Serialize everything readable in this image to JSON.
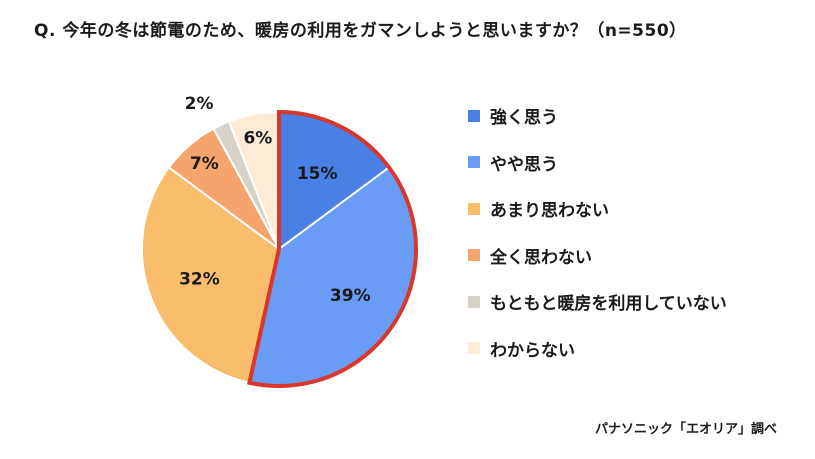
{
  "title": "Q. 今年の冬は節電のため、暖房の利用をガマンしようと思いますか？（n=550）",
  "source": "パナソニック「エオリア」調べ",
  "chart_data": {
    "type": "pie",
    "title": "Q. 今年の冬は節電のため、暖房の利用をガマンしようと思いますか？（n=550）",
    "n": 550,
    "unit": "%",
    "slices": [
      {
        "label": "強く思う",
        "value": 15,
        "color": "#4a7fe3"
      },
      {
        "label": "やや思う",
        "value": 39,
        "color": "#6b9cf5"
      },
      {
        "label": "あまり思わない",
        "value": 32,
        "color": "#f9bd6b"
      },
      {
        "label": "全く思わない",
        "value": 7,
        "color": "#f5a46d"
      },
      {
        "label": "もともと暖房を利用していない",
        "value": 2,
        "color": "#d7d2c8"
      },
      {
        "label": "わからない",
        "value": 6,
        "color": "#fdebd3"
      }
    ],
    "highlight": {
      "labels": [
        "強く思う",
        "やや思う"
      ],
      "outline_color": "#d9372b"
    },
    "legend_position": "right"
  }
}
